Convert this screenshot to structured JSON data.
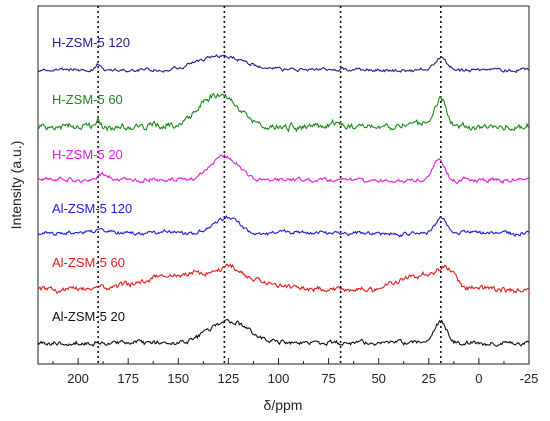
{
  "chart_data": {
    "type": "line",
    "xlabel": "δ/ppm",
    "ylabel": "Intensity (a.u.)",
    "x_reversed": true,
    "xlim": [
      220,
      -25
    ],
    "x_ticks": [
      "200",
      "175",
      "150",
      "125",
      "100",
      "75",
      "50",
      "25",
      "0",
      "-25"
    ],
    "x_tick_values": [
      200,
      175,
      150,
      125,
      100,
      75,
      50,
      25,
      0,
      -25
    ],
    "reference_lines_ppm": [
      190,
      127,
      69,
      19
    ],
    "grid": false,
    "series": [
      {
        "name": "H-ZSM-5 120",
        "color": "#1f1f8f",
        "peaks": [
          {
            "x": 190,
            "h": 0.6,
            "w": 1.5
          },
          {
            "x": 129,
            "h": 1.6,
            "w": 11
          },
          {
            "x": 19,
            "h": 1.4,
            "w": 3
          }
        ],
        "noise": 0.28
      },
      {
        "name": "H-ZSM-5 60",
        "color": "#1a8a1a",
        "peaks": [
          {
            "x": 190,
            "h": 0.8,
            "w": 1.5
          },
          {
            "x": 130,
            "h": 3.6,
            "w": 10
          },
          {
            "x": 70,
            "h": 0.4,
            "w": 2
          },
          {
            "x": 19,
            "h": 3.0,
            "w": 3
          }
        ],
        "noise": 0.55
      },
      {
        "name": "H-ZSM-5 20",
        "color": "#e31ce3",
        "peaks": [
          {
            "x": 187,
            "h": 0.5,
            "w": 3
          },
          {
            "x": 127,
            "h": 2.6,
            "w": 7
          },
          {
            "x": 20,
            "h": 2.4,
            "w": 3
          }
        ],
        "noise": 0.35
      },
      {
        "name": "Al-ZSM-5 120",
        "color": "#1c1ce3",
        "peaks": [
          {
            "x": 190,
            "h": 0.3,
            "w": 2
          },
          {
            "x": 126,
            "h": 1.7,
            "w": 6
          },
          {
            "x": 19,
            "h": 1.6,
            "w": 3
          }
        ],
        "noise": 0.33
      },
      {
        "name": "Al-ZSM-5 60",
        "color": "#e31c1c",
        "peaks": [
          {
            "x": 140,
            "h": 1.8,
            "w": 25
          },
          {
            "x": 124,
            "h": 1.2,
            "w": 5
          },
          {
            "x": 28,
            "h": 1.6,
            "w": 12
          },
          {
            "x": 16,
            "h": 1.6,
            "w": 4
          }
        ],
        "noise": 0.45
      },
      {
        "name": "Al-ZSM-5 20",
        "color": "#111111",
        "peaks": [
          {
            "x": 125,
            "h": 2.5,
            "w": 10
          },
          {
            "x": 19,
            "h": 2.3,
            "w": 3
          }
        ],
        "noise": 0.38
      }
    ]
  }
}
